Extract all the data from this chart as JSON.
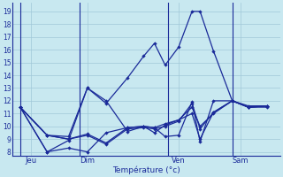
{
  "background_color": "#c8e8f0",
  "grid_color": "#a0c8d8",
  "line_color": "#1a2a99",
  "xlabel": "Température (°c)",
  "yticks": [
    8,
    9,
    10,
    11,
    12,
    13,
    14,
    15,
    16,
    17,
    18,
    19
  ],
  "ylim": [
    7.7,
    19.7
  ],
  "xlim": [
    0,
    100
  ],
  "xtick_positions": [
    7,
    28,
    62,
    85
  ],
  "xtick_labels": [
    "Jeu",
    "Dim",
    "Ven",
    "Sam"
  ],
  "vlines": [
    3,
    25,
    58,
    82
  ],
  "series": [
    {
      "x": [
        3,
        13,
        21,
        28,
        35,
        43,
        49,
        53,
        57,
        62,
        67,
        70,
        75,
        82,
        88,
        95
      ],
      "y": [
        11.5,
        9.3,
        9.2,
        13.0,
        11.8,
        13.8,
        15.5,
        16.5,
        14.8,
        16.2,
        19.0,
        19.0,
        15.9,
        12.0,
        11.5,
        11.5
      ]
    },
    {
      "x": [
        3,
        13,
        21,
        28,
        35,
        43,
        49,
        53,
        57,
        62,
        67,
        70,
        75,
        82,
        88,
        95
      ],
      "y": [
        11.5,
        8.0,
        8.9,
        13.0,
        12.0,
        9.6,
        10.0,
        9.9,
        9.2,
        9.3,
        11.9,
        8.8,
        12.0,
        12.0,
        11.5,
        11.6
      ]
    },
    {
      "x": [
        3,
        13,
        21,
        28,
        35,
        43,
        49,
        53,
        57,
        62,
        67,
        70,
        75,
        82,
        88,
        95
      ],
      "y": [
        11.5,
        9.3,
        9.0,
        9.4,
        8.7,
        9.9,
        10.0,
        9.5,
        10.1,
        10.5,
        11.0,
        9.0,
        11.1,
        12.0,
        11.5,
        11.6
      ]
    },
    {
      "x": [
        3,
        13,
        21,
        28,
        35,
        43,
        49,
        53,
        57,
        62,
        67,
        70,
        75,
        82,
        88,
        95
      ],
      "y": [
        11.5,
        8.0,
        8.3,
        8.0,
        9.5,
        9.9,
        10.0,
        9.9,
        10.2,
        10.5,
        11.5,
        10.0,
        11.0,
        12.0,
        11.5,
        11.6
      ]
    },
    {
      "x": [
        3,
        13,
        21,
        28,
        35,
        43,
        49,
        53,
        57,
        62,
        67,
        70,
        75,
        82,
        88,
        95
      ],
      "y": [
        11.5,
        9.3,
        9.0,
        9.3,
        8.6,
        9.8,
        9.9,
        9.8,
        10.0,
        10.4,
        11.8,
        9.8,
        11.1,
        12.0,
        11.6,
        11.6
      ]
    }
  ]
}
